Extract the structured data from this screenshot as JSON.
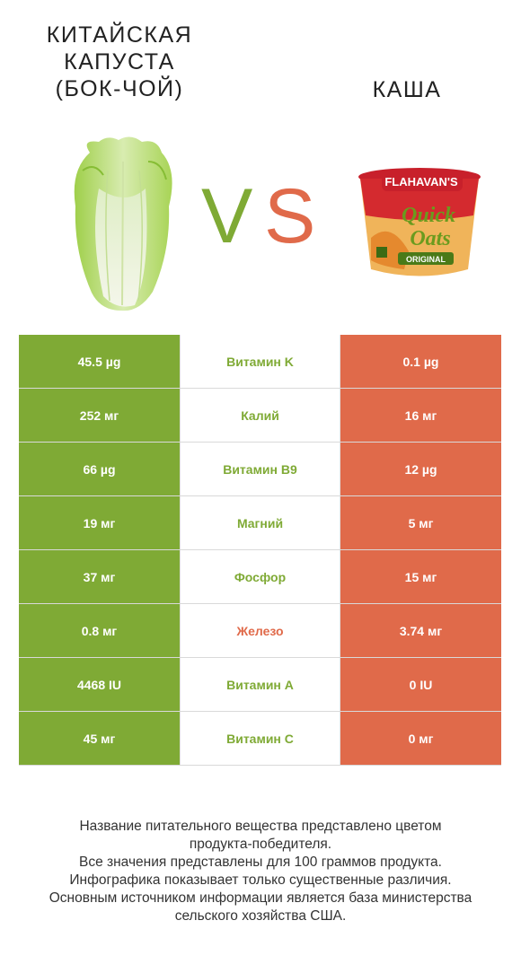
{
  "left_product": {
    "title_lines": [
      "КИТАЙСКАЯ",
      "КАПУСТА",
      "(БОК-ЧОЙ)"
    ],
    "color": "#7faa35"
  },
  "right_product": {
    "title": "КАША",
    "color": "#e06a4a",
    "package_text": {
      "brand": "FLAHAVAN'S",
      "line1": "Quick",
      "line2": "Oats",
      "badge": "ORIGINAL"
    }
  },
  "vs": {
    "v": "V",
    "s": "S"
  },
  "rows": [
    {
      "left": "45.5 µg",
      "nutrient": "Витамин K",
      "right": "0.1 µg",
      "winner": "left"
    },
    {
      "left": "252 мг",
      "nutrient": "Калий",
      "right": "16 мг",
      "winner": "left"
    },
    {
      "left": "66 µg",
      "nutrient": "Витамин B9",
      "right": "12 µg",
      "winner": "left"
    },
    {
      "left": "19 мг",
      "nutrient": "Магний",
      "right": "5 мг",
      "winner": "left"
    },
    {
      "left": "37 мг",
      "nutrient": "Фосфор",
      "right": "15 мг",
      "winner": "left"
    },
    {
      "left": "0.8 мг",
      "nutrient": "Железо",
      "right": "3.74 мг",
      "winner": "right"
    },
    {
      "left": "4468 IU",
      "nutrient": "Витамин A",
      "right": "0 IU",
      "winner": "left"
    },
    {
      "left": "45 мг",
      "nutrient": "Витамин C",
      "right": "0 мг",
      "winner": "left"
    }
  ],
  "footer_lines": [
    "Название питательного вещества представлено цветом",
    "продукта-победителя.",
    "Все значения представлены для 100 граммов продукта.",
    "Инфографика показывает только существенные различия.",
    "Основным источником информации является база министерства",
    "сельского хозяйства США."
  ]
}
